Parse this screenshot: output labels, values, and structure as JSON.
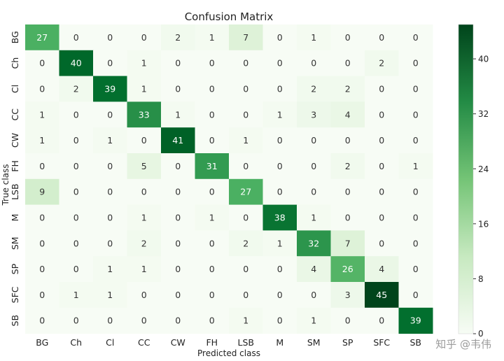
{
  "chart_data": {
    "type": "heatmap",
    "title": "Confusion Matrix",
    "xlabel": "Predicted class",
    "ylabel": "True class",
    "x_categories": [
      "BG",
      "Ch",
      "Cl",
      "CC",
      "CW",
      "FH",
      "LSB",
      "M",
      "SM",
      "SP",
      "SFC",
      "SB"
    ],
    "y_categories": [
      "BG",
      "Ch",
      "Cl",
      "CC",
      "CW",
      "FH",
      "LSB",
      "M",
      "SM",
      "SP",
      "SFC",
      "SB"
    ],
    "values": [
      [
        27,
        0,
        0,
        0,
        2,
        1,
        7,
        0,
        1,
        0,
        0,
        0
      ],
      [
        0,
        40,
        0,
        1,
        0,
        0,
        0,
        0,
        0,
        0,
        2,
        0
      ],
      [
        0,
        2,
        39,
        1,
        0,
        0,
        0,
        0,
        2,
        2,
        0,
        0
      ],
      [
        1,
        0,
        0,
        33,
        1,
        0,
        0,
        1,
        3,
        4,
        0,
        0
      ],
      [
        1,
        0,
        1,
        0,
        41,
        0,
        1,
        0,
        0,
        0,
        0,
        0
      ],
      [
        0,
        0,
        0,
        5,
        0,
        31,
        0,
        0,
        0,
        2,
        0,
        1
      ],
      [
        9,
        0,
        0,
        0,
        0,
        0,
        27,
        0,
        0,
        0,
        0,
        0
      ],
      [
        0,
        0,
        0,
        1,
        0,
        1,
        0,
        38,
        1,
        0,
        0,
        0
      ],
      [
        0,
        0,
        0,
        2,
        0,
        0,
        2,
        1,
        32,
        7,
        0,
        0
      ],
      [
        0,
        0,
        1,
        1,
        0,
        0,
        0,
        0,
        4,
        26,
        4,
        0
      ],
      [
        0,
        1,
        1,
        0,
        0,
        0,
        0,
        0,
        0,
        3,
        45,
        0
      ],
      [
        0,
        0,
        0,
        0,
        0,
        0,
        1,
        0,
        1,
        0,
        0,
        39
      ]
    ],
    "colorscale": {
      "min": 0,
      "max": 45,
      "low_color": "#f7fcf5",
      "high_color": "#00441b",
      "colormap": "Greens"
    },
    "colorbar_ticks": [
      0,
      8,
      16,
      24,
      32,
      40
    ]
  },
  "watermark": "知乎 @韦伟"
}
